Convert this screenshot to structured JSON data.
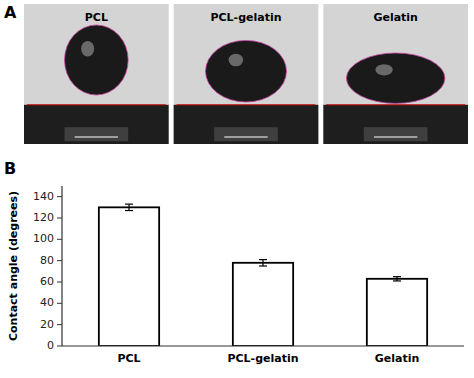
{
  "chart_data": {
    "type": "bar",
    "categories": [
      "PCL",
      "PCL-gelatin",
      "Gelatin"
    ],
    "values": [
      130,
      78,
      63
    ],
    "errors": [
      3,
      3,
      2
    ],
    "ylabel": "Contact angle (degrees)",
    "ylim": [
      0,
      150
    ],
    "yticks": [
      0,
      20,
      40,
      60,
      80,
      100,
      120,
      140
    ],
    "color": "#ffffff",
    "grid": false,
    "annotations": [
      "A",
      "B"
    ]
  }
}
